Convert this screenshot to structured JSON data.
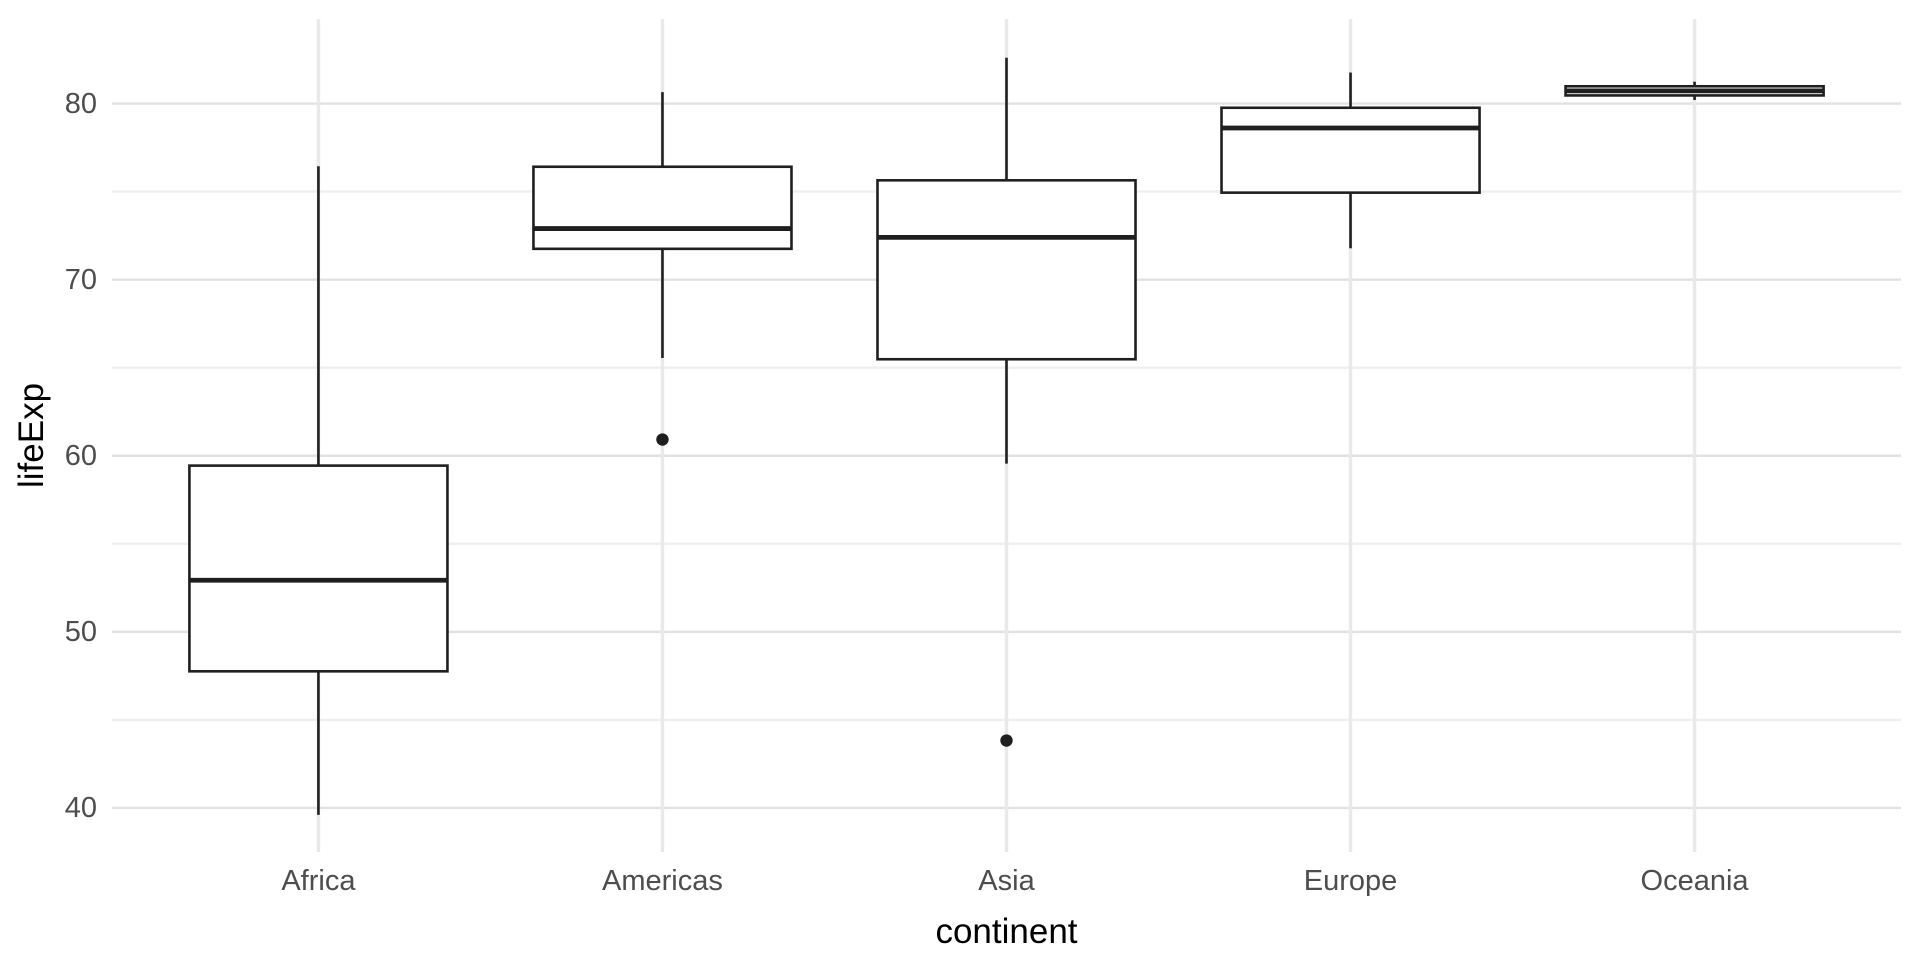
{
  "chart_data": {
    "type": "boxplot",
    "title": "",
    "xlabel": "continent",
    "ylabel": "lifeExp",
    "categories": [
      "Africa",
      "Americas",
      "Asia",
      "Europe",
      "Oceania"
    ],
    "y_ticks": [
      40,
      50,
      60,
      70,
      80
    ],
    "y_minor_ticks": [
      45,
      55,
      65,
      75
    ],
    "ylim": [
      37.5,
      84.8
    ],
    "grid": "on",
    "legend": "none",
    "series": [
      {
        "category": "Africa",
        "whisker_low": 39.61,
        "q1": 47.76,
        "median": 52.93,
        "q3": 59.44,
        "whisker_high": 76.44,
        "outliers": []
      },
      {
        "category": "Americas",
        "whisker_low": 65.55,
        "q1": 71.75,
        "median": 72.9,
        "q3": 76.41,
        "whisker_high": 80.65,
        "outliers": [
          60.92
        ]
      },
      {
        "category": "Asia",
        "whisker_low": 59.55,
        "q1": 65.48,
        "median": 72.4,
        "q3": 75.64,
        "whisker_high": 82.6,
        "outliers": [
          43.83
        ]
      },
      {
        "category": "Europe",
        "whisker_low": 71.78,
        "q1": 74.94,
        "median": 78.61,
        "q3": 79.76,
        "whisker_high": 81.76,
        "outliers": []
      },
      {
        "category": "Oceania",
        "whisker_low": 80.2,
        "q1": 80.46,
        "median": 80.72,
        "q3": 80.98,
        "whisker_high": 81.24,
        "outliers": []
      }
    ],
    "colors": {
      "box_stroke": "#1f1f1f",
      "box_fill": "#ffffff",
      "outlier": "#1f1f1f",
      "grid_major": "#e2e2e2",
      "grid_minor": "#efefef",
      "grid_vertical": "#e9e9e9",
      "tick_label": "#4d4d4d",
      "axis_title": "#000000",
      "background": "#ffffff"
    }
  }
}
